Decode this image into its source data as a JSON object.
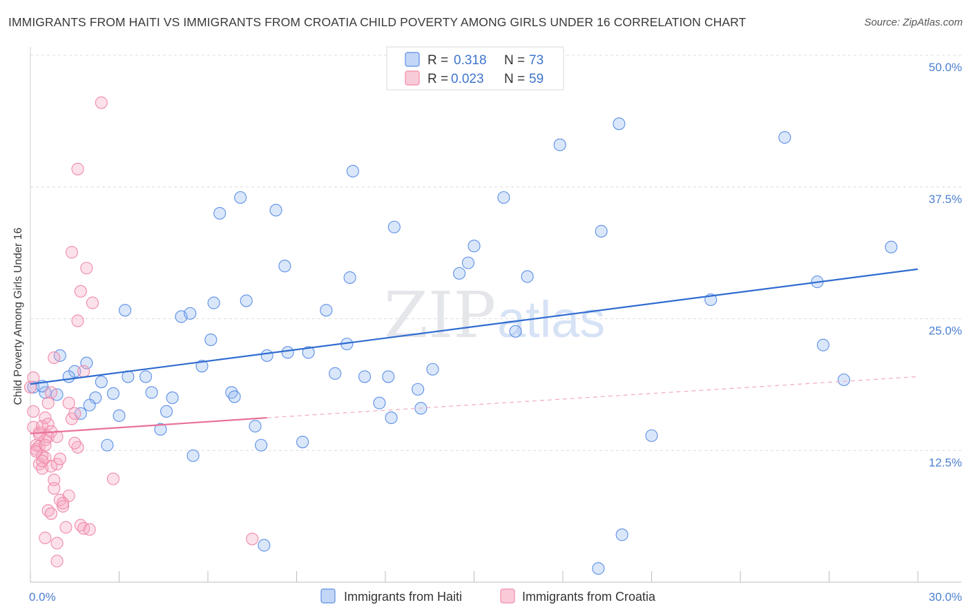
{
  "title": "IMMIGRANTS FROM HAITI VS IMMIGRANTS FROM CROATIA CHILD POVERTY AMONG GIRLS UNDER 16 CORRELATION CHART",
  "source": "Source: ZipAtlas.com",
  "watermark": {
    "zip": "ZIP",
    "atlas": "atlas"
  },
  "legend": {
    "r_label": "R =",
    "n_label": "N =",
    "entries": [
      {
        "name": "Immigrants from Haiti",
        "r": "0.318",
        "n": "73",
        "color": "#5b8ee6"
      },
      {
        "name": "Immigrants from Croatia",
        "r": "0.023",
        "n": "59",
        "color": "#ef8aa8"
      }
    ]
  },
  "chart_data": {
    "type": "scatter",
    "title": "IMMIGRANTS FROM HAITI VS IMMIGRANTS FROM CROATIA CHILD POVERTY AMONG GIRLS UNDER 16 CORRELATION CHART",
    "xlabel": "",
    "ylabel": "Child Poverty Among Girls Under 16",
    "xlim": [
      0,
      30
    ],
    "ylim": [
      0,
      50
    ],
    "x_tick_labels": [
      {
        "value": 0,
        "label": "0.0%"
      },
      {
        "value": 30,
        "label": "30.0%"
      }
    ],
    "y_tick_labels": [
      {
        "value": 12.5,
        "label": "12.5%"
      },
      {
        "value": 25,
        "label": "25.0%"
      },
      {
        "value": 37.5,
        "label": "37.5%"
      },
      {
        "value": 50,
        "label": "50.0%"
      }
    ],
    "grid": true,
    "legend_position": "top-center",
    "series": [
      {
        "name": "Immigrants from Haiti",
        "color": "#5b8ee6",
        "trend": {
          "x": [
            0,
            30
          ],
          "y": [
            18.8,
            29.7
          ],
          "style": "solid"
        },
        "points": [
          [
            0.1,
            18.5
          ],
          [
            0.5,
            18.0
          ],
          [
            0.4,
            18.6
          ],
          [
            1.0,
            21.5
          ],
          [
            1.9,
            20.8
          ],
          [
            1.5,
            20.0
          ],
          [
            2.4,
            19.0
          ],
          [
            2.2,
            17.5
          ],
          [
            2.8,
            17.9
          ],
          [
            3.3,
            19.5
          ],
          [
            3.9,
            19.5
          ],
          [
            4.1,
            18.0
          ],
          [
            4.8,
            17.5
          ],
          [
            4.6,
            16.2
          ],
          [
            2.6,
            13.0
          ],
          [
            3.0,
            15.8
          ],
          [
            1.7,
            16.0
          ],
          [
            4.4,
            14.5
          ],
          [
            3.2,
            25.8
          ],
          [
            5.1,
            25.2
          ],
          [
            5.4,
            25.5
          ],
          [
            5.8,
            20.5
          ],
          [
            6.1,
            23.0
          ],
          [
            6.2,
            26.5
          ],
          [
            6.4,
            35.0
          ],
          [
            6.8,
            18.0
          ],
          [
            6.9,
            17.6
          ],
          [
            7.1,
            36.5
          ],
          [
            7.3,
            26.7
          ],
          [
            7.6,
            14.8
          ],
          [
            7.8,
            13.0
          ],
          [
            8.0,
            21.5
          ],
          [
            8.3,
            35.3
          ],
          [
            8.6,
            30.0
          ],
          [
            8.7,
            21.8
          ],
          [
            9.2,
            13.3
          ],
          [
            9.4,
            21.8
          ],
          [
            10.0,
            25.8
          ],
          [
            10.3,
            19.8
          ],
          [
            10.7,
            22.6
          ],
          [
            10.8,
            28.9
          ],
          [
            10.9,
            39.0
          ],
          [
            11.3,
            19.5
          ],
          [
            11.8,
            17.0
          ],
          [
            12.1,
            19.5
          ],
          [
            12.2,
            15.6
          ],
          [
            12.3,
            33.7
          ],
          [
            13.1,
            18.3
          ],
          [
            13.2,
            16.5
          ],
          [
            13.6,
            20.2
          ],
          [
            14.5,
            29.3
          ],
          [
            14.8,
            30.3
          ],
          [
            15.0,
            31.9
          ],
          [
            16.0,
            36.5
          ],
          [
            16.4,
            23.8
          ],
          [
            16.8,
            29.0
          ],
          [
            17.9,
            41.5
          ],
          [
            19.3,
            33.3
          ],
          [
            19.9,
            43.5
          ],
          [
            20.0,
            4.5
          ],
          [
            19.2,
            1.3
          ],
          [
            21.0,
            13.9
          ],
          [
            23.0,
            26.8
          ],
          [
            25.5,
            42.2
          ],
          [
            26.6,
            28.5
          ],
          [
            26.8,
            22.5
          ],
          [
            27.5,
            19.2
          ],
          [
            29.1,
            31.8
          ],
          [
            7.9,
            3.5
          ],
          [
            5.5,
            12.0
          ],
          [
            0.9,
            17.8
          ],
          [
            1.3,
            19.5
          ],
          [
            2.0,
            16.8
          ]
        ]
      },
      {
        "name": "Immigrants from Croatia",
        "color": "#ef8aa8",
        "trend": {
          "x": [
            0,
            8
          ],
          "y": [
            14.1,
            15.6
          ],
          "style": "solid",
          "extended": {
            "x": [
              8,
              30
            ],
            "y": [
              15.6,
              19.5
            ],
            "style": "dashed"
          }
        },
        "points": [
          [
            0.0,
            18.5
          ],
          [
            0.1,
            19.4
          ],
          [
            0.1,
            16.2
          ],
          [
            0.1,
            14.7
          ],
          [
            0.2,
            13.0
          ],
          [
            0.2,
            12.6
          ],
          [
            0.3,
            11.2
          ],
          [
            0.3,
            14.2
          ],
          [
            0.3,
            12.9
          ],
          [
            0.4,
            14.8
          ],
          [
            0.4,
            10.8
          ],
          [
            0.4,
            12.0
          ],
          [
            0.5,
            15.6
          ],
          [
            0.5,
            11.8
          ],
          [
            0.5,
            13.5
          ],
          [
            0.6,
            15.0
          ],
          [
            0.6,
            13.8
          ],
          [
            0.7,
            14.3
          ],
          [
            0.7,
            11.0
          ],
          [
            0.7,
            18.0
          ],
          [
            0.8,
            21.3
          ],
          [
            0.6,
            17.0
          ],
          [
            0.9,
            13.8
          ],
          [
            0.8,
            9.7
          ],
          [
            0.8,
            8.9
          ],
          [
            0.9,
            11.2
          ],
          [
            1.0,
            11.7
          ],
          [
            1.0,
            7.8
          ],
          [
            1.1,
            7.2
          ],
          [
            1.2,
            5.2
          ],
          [
            1.3,
            8.2
          ],
          [
            1.4,
            15.5
          ],
          [
            1.3,
            17.0
          ],
          [
            1.5,
            16.0
          ],
          [
            1.6,
            12.8
          ],
          [
            1.5,
            13.2
          ],
          [
            1.7,
            5.4
          ],
          [
            1.8,
            5.1
          ],
          [
            1.8,
            20.0
          ],
          [
            2.0,
            5.0
          ],
          [
            2.1,
            26.5
          ],
          [
            1.4,
            31.3
          ],
          [
            1.6,
            24.8
          ],
          [
            1.7,
            27.6
          ],
          [
            1.9,
            29.8
          ],
          [
            1.6,
            39.2
          ],
          [
            2.4,
            45.5
          ],
          [
            2.8,
            9.8
          ],
          [
            0.5,
            4.2
          ],
          [
            0.6,
            6.8
          ],
          [
            0.7,
            6.5
          ],
          [
            0.9,
            3.7
          ],
          [
            0.9,
            2.0
          ],
          [
            0.2,
            12.4
          ],
          [
            0.5,
            13.0
          ],
          [
            0.4,
            11.5
          ],
          [
            7.5,
            4.1
          ],
          [
            1.1,
            7.5
          ],
          [
            0.3,
            14.0
          ]
        ]
      }
    ]
  }
}
